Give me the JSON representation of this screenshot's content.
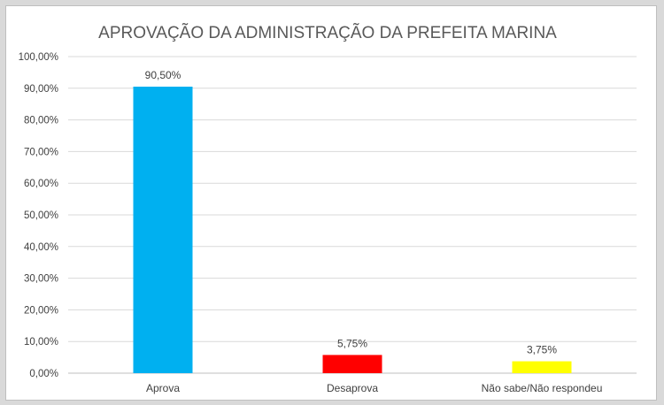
{
  "chart_data": {
    "type": "bar",
    "title": "APROVAÇÃO DA ADMINISTRAÇÃO DA PREFEITA MARINA",
    "categories": [
      "Aprova",
      "Desaprova",
      "Não sabe/Não respondeu"
    ],
    "values": [
      90.5,
      5.75,
      3.75
    ],
    "data_labels": [
      "90,50%",
      "5,75%",
      "3,75%"
    ],
    "colors": [
      "#00b0f0",
      "#ff0000",
      "#ffff00"
    ],
    "ylim": [
      0,
      100
    ],
    "yticks": [
      0,
      10,
      20,
      30,
      40,
      50,
      60,
      70,
      80,
      90,
      100
    ],
    "ytick_labels": [
      "0,00%",
      "10,00%",
      "20,00%",
      "30,00%",
      "40,00%",
      "50,00%",
      "60,00%",
      "70,00%",
      "80,00%",
      "90,00%",
      "100,00%"
    ],
    "grid": true,
    "legend": "none"
  }
}
